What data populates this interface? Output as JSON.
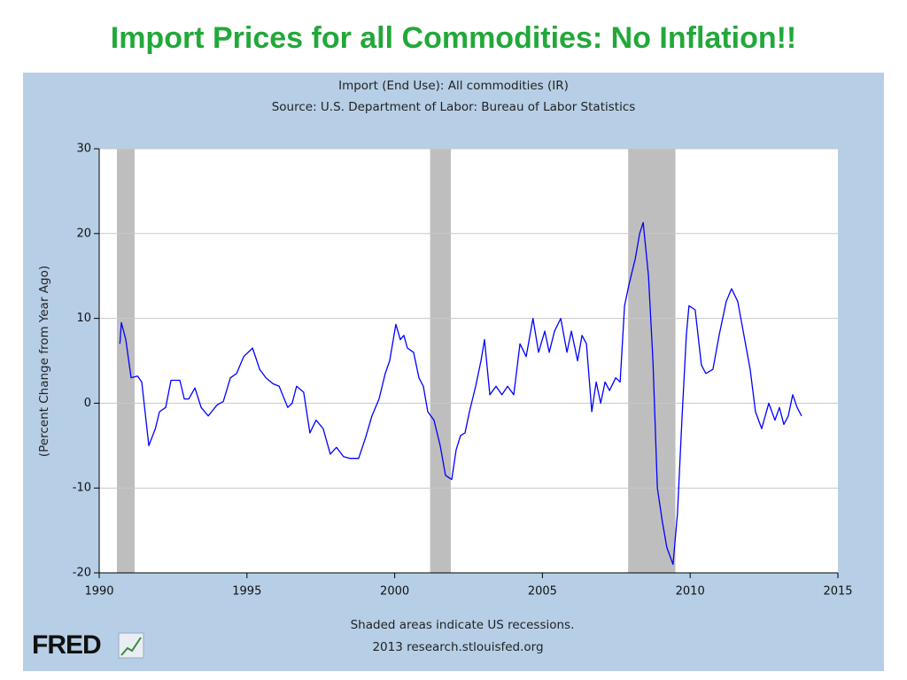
{
  "chart_data": {
    "type": "line",
    "title": "Import Prices for all Commodities: No Inflation!!",
    "subtitle": [
      "Import (End Use): All commodities (IR)",
      "Source: U.S. Department of Labor: Bureau of Labor Statistics"
    ],
    "y_label": "(Percent Change from Year Ago)",
    "notes": [
      "Shaded areas indicate US recessions.",
      "2013 research.stlouisfed.org"
    ],
    "logo": "FRED",
    "color": "#0000ff",
    "recession_color": "#bebebe",
    "grid": true,
    "xlim": [
      1990,
      2015
    ],
    "xticks": [
      1990,
      1995,
      2000,
      2005,
      2010,
      2015
    ],
    "ylim": [
      -20,
      30
    ],
    "yticks": [
      -20,
      -10,
      0,
      10,
      20,
      30
    ],
    "recessions": [
      [
        1990.6,
        1991.2
      ],
      [
        2001.2,
        2001.9
      ],
      [
        2007.9,
        2009.5
      ]
    ],
    "x": [
      1990.7,
      1990.75,
      1990.9,
      1991.08,
      1991.3,
      1991.44,
      1991.68,
      1991.9,
      1992.04,
      1992.25,
      1992.43,
      1992.73,
      1992.88,
      1993.03,
      1993.24,
      1993.45,
      1993.69,
      1993.99,
      1994.2,
      1994.44,
      1994.65,
      1994.89,
      1995.19,
      1995.43,
      1995.64,
      1995.88,
      1996.09,
      1996.38,
      1996.53,
      1996.68,
      1996.92,
      1997.13,
      1997.34,
      1997.58,
      1997.82,
      1998.03,
      1998.27,
      1998.48,
      1998.78,
      1999.02,
      1999.23,
      1999.47,
      1999.68,
      1999.83,
      2000.04,
      2000.19,
      2000.31,
      2000.43,
      2000.64,
      2000.82,
      2000.97,
      2001.12,
      2001.33,
      2001.54,
      2001.72,
      2001.93,
      2002.08,
      2002.23,
      2002.38,
      2002.53,
      2002.74,
      2002.92,
      2003.04,
      2003.22,
      2003.43,
      2003.63,
      2003.82,
      2004.03,
      2004.24,
      2004.45,
      2004.68,
      2004.87,
      2005.08,
      2005.23,
      2005.41,
      2005.62,
      2005.83,
      2005.98,
      2006.19,
      2006.34,
      2006.49,
      2006.67,
      2006.82,
      2006.97,
      2007.12,
      2007.27,
      2007.48,
      2007.63,
      2007.78,
      2007.93,
      2008.14,
      2008.29,
      2008.41,
      2008.59,
      2008.74,
      2008.89,
      2009.06,
      2009.21,
      2009.42,
      2009.57,
      2009.72,
      2009.87,
      2009.96,
      2010.17,
      2010.38,
      2010.53,
      2010.77,
      2010.98,
      2011.22,
      2011.4,
      2011.61,
      2011.82,
      2012.03,
      2012.21,
      2012.42,
      2012.66,
      2012.87,
      2013.02,
      2013.17,
      2013.32,
      2013.47,
      2013.62,
      2013.77
    ],
    "values": [
      7,
      9.5,
      7.5,
      3,
      3.2,
      2.5,
      -5,
      -3,
      -1,
      -0.5,
      2.7,
      2.7,
      0.5,
      0.5,
      1.8,
      -0.5,
      -1.5,
      -0.2,
      0.2,
      3,
      3.5,
      5.5,
      6.5,
      4,
      3,
      2.3,
      2,
      -0.5,
      0,
      2,
      1.3,
      -3.5,
      -2,
      -3,
      -6,
      -5.2,
      -6.3,
      -6.5,
      -6.5,
      -4,
      -1.5,
      0.5,
      3.5,
      5,
      9.3,
      7.5,
      8,
      6.5,
      6,
      3,
      2,
      -1,
      -2,
      -5,
      -8.5,
      -9,
      -5.5,
      -3.8,
      -3.5,
      -1,
      2,
      5,
      7.5,
      1,
      2,
      1,
      2,
      1,
      7,
      5.5,
      10,
      6,
      8.5,
      6,
      8.5,
      10,
      6,
      8.5,
      5,
      8,
      7,
      -1,
      2.5,
      0,
      2.5,
      1.5,
      3,
      2.5,
      11.5,
      14,
      17,
      20,
      21.3,
      15,
      5,
      -10,
      -14,
      -17,
      -19,
      -13,
      -2,
      8,
      11.5,
      11,
      4.5,
      3.5,
      4,
      8,
      12,
      13.5,
      12,
      8,
      4,
      -1,
      -3,
      0,
      -2,
      -0.5,
      -2.5,
      -1.5,
      1,
      -0.5,
      -1.5
    ]
  }
}
